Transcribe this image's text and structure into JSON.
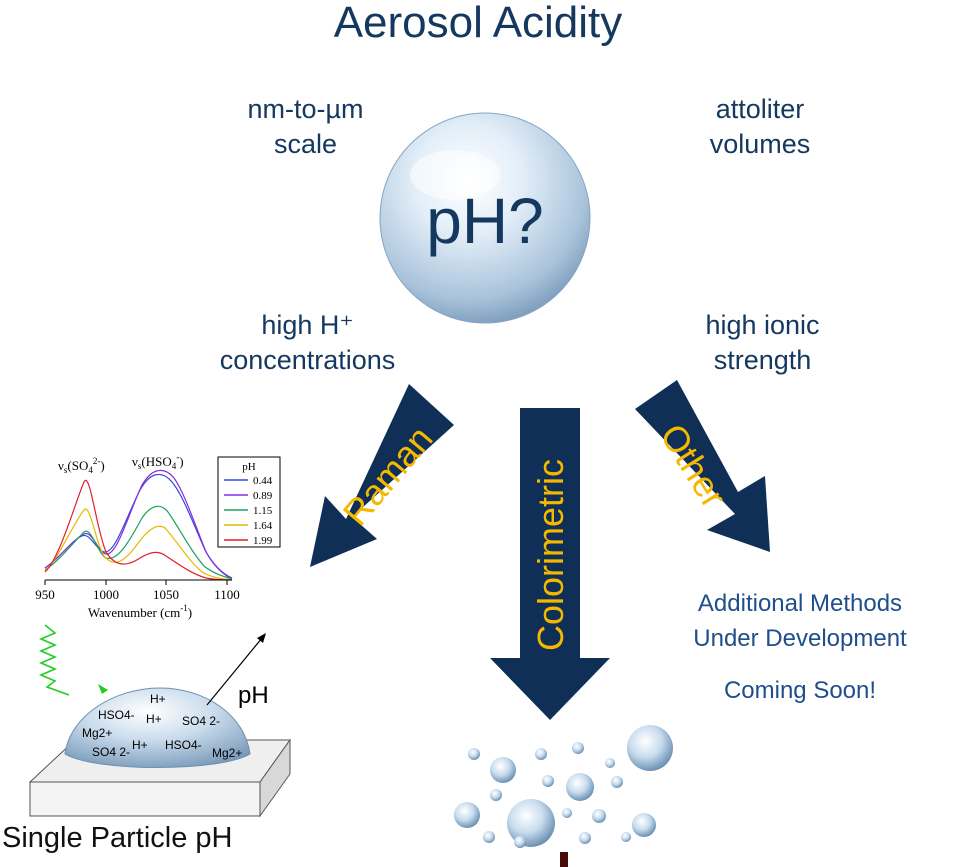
{
  "title": "Aerosol Acidity",
  "center_label": "pH?",
  "properties": {
    "top_left": [
      "nm-to-µm",
      "scale"
    ],
    "top_right": [
      "attoliter",
      "volumes"
    ],
    "bottom_left": [
      "high H⁺",
      "concentrations"
    ],
    "bottom_right": [
      "high ionic",
      "strength"
    ]
  },
  "methods": {
    "raman": "Raman",
    "colorimetric": "Colorimetric",
    "other": "Other"
  },
  "other_method": {
    "line1": "Additional Methods",
    "line2": "Under Development",
    "line3": "Coming Soon!"
  },
  "raman_spectrum": {
    "peak_labels": [
      "νs(SO4 2-)",
      "νs(HSO4 -)"
    ],
    "xlabel": "Wavenumber (cm-1)",
    "x_ticks": [
      "950",
      "1000",
      "1050",
      "1100"
    ],
    "legend_title": "pH",
    "series": [
      {
        "name": "0.44",
        "color": "#2b4bd6"
      },
      {
        "name": "0.89",
        "color": "#8a2be2"
      },
      {
        "name": "1.15",
        "color": "#1aa35a"
      },
      {
        "name": "1.64",
        "color": "#e6b800"
      },
      {
        "name": "1.99",
        "color": "#e0202a"
      }
    ]
  },
  "particle": {
    "ions": [
      "H+",
      "HSO4-",
      "H+",
      "SO4 2-",
      "Mg2+",
      "SO4 2-",
      "H+",
      "HSO4-",
      "Mg2+"
    ],
    "output_label": "pH",
    "caption": "Single Particle pH"
  },
  "colors": {
    "navy": "#14385e",
    "arrow": "#0f2f57",
    "arrow_text": "#f5b800",
    "accent_blue": "#1f4e8c"
  }
}
